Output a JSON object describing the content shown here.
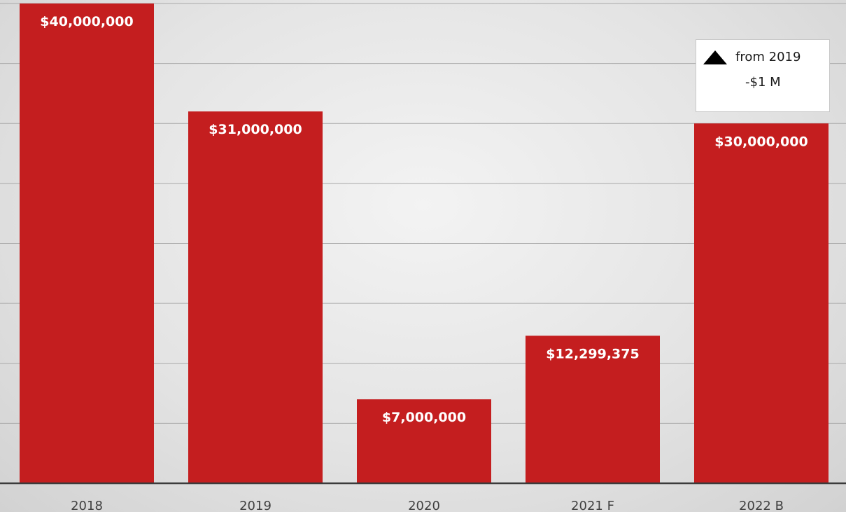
{
  "chart_data": {
    "type": "bar",
    "categories": [
      "2018",
      "2019",
      "2020",
      "2021 F",
      "2022 B"
    ],
    "values": [
      40000000,
      31000000,
      7000000,
      12299375,
      30000000
    ],
    "data_labels": [
      "$40,000,000",
      "$31,000,000",
      "$7,000,000",
      "$12,299,375",
      "$30,000,000"
    ],
    "title": "",
    "xlabel": "",
    "ylabel": "",
    "ylim": [
      0,
      40000000
    ],
    "grid": true,
    "grid_step": 5000000,
    "bar_color": "#c41e1f",
    "annotation": {
      "icon": "triangle-up-icon",
      "line1": "from 2019",
      "line2": "-$1 M",
      "placement": "top-right"
    }
  }
}
